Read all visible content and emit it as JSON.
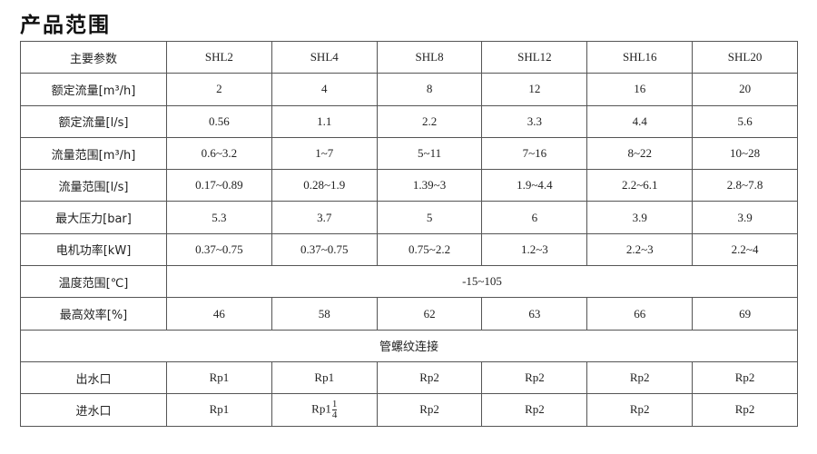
{
  "title": "产品范围",
  "table": {
    "header": [
      "主要参数",
      "SHL2",
      "SHL4",
      "SHL8",
      "SHL12",
      "SHL16",
      "SHL20"
    ],
    "rows": [
      {
        "label": "额定流量[m³/h]",
        "values": [
          "2",
          "4",
          "8",
          "12",
          "16",
          "20"
        ]
      },
      {
        "label": "额定流量[l/s]",
        "values": [
          "0.56",
          "1.1",
          "2.2",
          "3.3",
          "4.4",
          "5.6"
        ]
      },
      {
        "label": "流量范围[m³/h]",
        "values": [
          "0.6~3.2",
          "1~7",
          "5~11",
          "7~16",
          "8~22",
          "10~28"
        ]
      },
      {
        "label": "流量范围[l/s]",
        "values": [
          "0.17~0.89",
          "0.28~1.9",
          "1.39~3",
          "1.9~4.4",
          "2.2~6.1",
          "2.8~7.8"
        ]
      },
      {
        "label": "最大压力[bar]",
        "values": [
          "5.3",
          "3.7",
          "5",
          "6",
          "3.9",
          "3.9"
        ]
      },
      {
        "label": "电机功率[kW]",
        "values": [
          "0.37~0.75",
          "0.37~0.75",
          "0.75~2.2",
          "1.2~3",
          "2.2~3",
          "2.2~4"
        ]
      }
    ],
    "temperature": {
      "label": "温度范围[℃]",
      "value": "-15~105"
    },
    "efficiency": {
      "label": "最高效率[%]",
      "values": [
        "46",
        "58",
        "62",
        "63",
        "66",
        "69"
      ]
    },
    "connection_heading": "管螺纹连接",
    "outlet": {
      "label": "出水口",
      "values": [
        "Rp1",
        "Rp1",
        "Rp2",
        "Rp2",
        "Rp2",
        "Rp2"
      ]
    },
    "inlet": {
      "label": "进水口",
      "values": [
        "Rp1",
        "Rp1",
        "Rp2",
        "Rp2",
        "Rp2",
        "Rp2"
      ],
      "shl4_fraction": {
        "num": "1",
        "den": "4"
      }
    }
  }
}
